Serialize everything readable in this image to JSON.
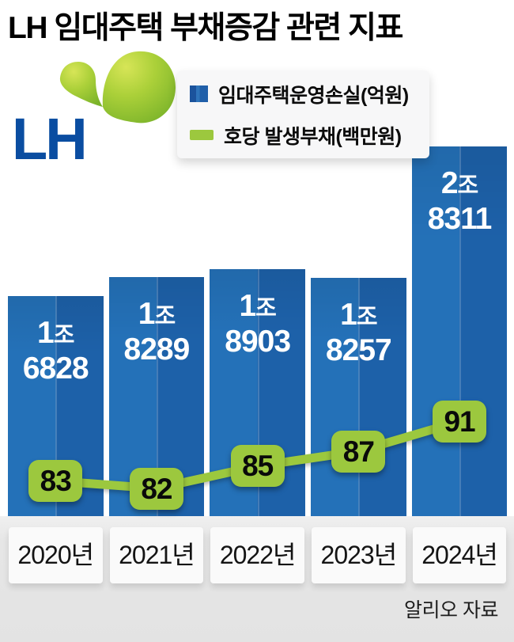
{
  "logo": {
    "text": "LH"
  },
  "chart_data": {
    "type": "bar",
    "title": "LH 임대주택 부채증감 관련 지표",
    "categories": [
      "2020년",
      "2021년",
      "2022년",
      "2023년",
      "2024년"
    ],
    "bar_series": {
      "name": "임대주택운영손실(억원)",
      "unit": "억원",
      "color": "#1e65ae",
      "values": [
        16828,
        18289,
        18903,
        18257,
        28311
      ],
      "labels": [
        {
          "jo": "1",
          "unit": "조",
          "rest": "6828"
        },
        {
          "jo": "1",
          "unit": "조",
          "rest": "8289"
        },
        {
          "jo": "1",
          "unit": "조",
          "rest": "8903"
        },
        {
          "jo": "1",
          "unit": "조",
          "rest": "8257"
        },
        {
          "jo": "2",
          "unit": "조",
          "rest": "8311"
        }
      ]
    },
    "line_series": {
      "name": "호당 발생부채(백만원)",
      "unit": "백만원",
      "color": "#9cc83e",
      "values": [
        83,
        82,
        85,
        87,
        91
      ]
    },
    "legend_position": "top",
    "grid": false,
    "bar_axis_range": [
      0,
      28500
    ],
    "line_axis_range": [
      80,
      93
    ],
    "source": "알리오 자료"
  },
  "colors": {
    "bar_blue": "#1e65ae",
    "bar_blue_light": "#2471b8",
    "bar_blue_dark": "#1d61a9",
    "line_green": "#9cc83e",
    "lh_blue": "#0a4da1",
    "legend_bg": "#f7f7f8",
    "footer_bg": "#e9e9e9",
    "title_color": "#000000"
  }
}
